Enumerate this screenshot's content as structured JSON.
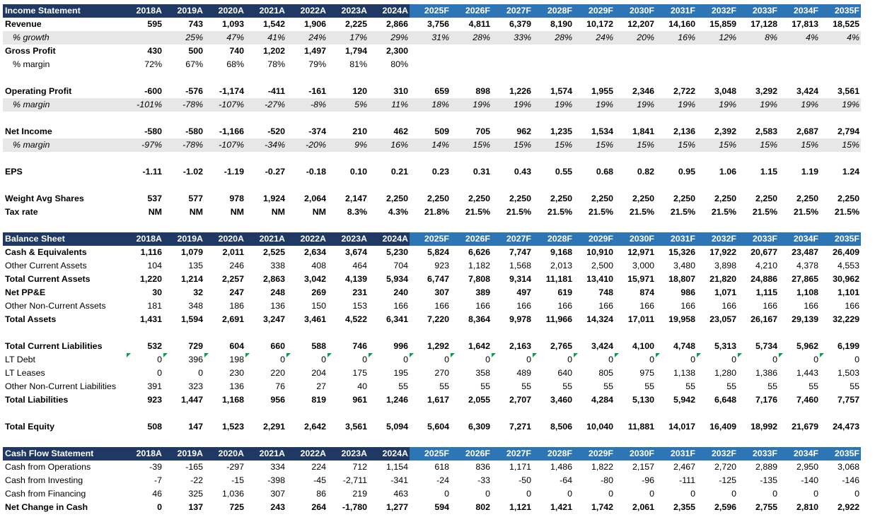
{
  "colors": {
    "header_bg": "#1f3864",
    "forecast_header_bg": "#2e75b6",
    "header_text": "#ffffff",
    "shade_bg": "#e7e7e7",
    "flag": "#00a14b"
  },
  "years": [
    {
      "label": "2018A",
      "forecast": false
    },
    {
      "label": "2019A",
      "forecast": false
    },
    {
      "label": "2020A",
      "forecast": false
    },
    {
      "label": "2021A",
      "forecast": false
    },
    {
      "label": "2022A",
      "forecast": false
    },
    {
      "label": "2023A",
      "forecast": false
    },
    {
      "label": "2024A",
      "forecast": false
    },
    {
      "label": "2025F",
      "forecast": true
    },
    {
      "label": "2026F",
      "forecast": true
    },
    {
      "label": "2027F",
      "forecast": true
    },
    {
      "label": "2028F",
      "forecast": true
    },
    {
      "label": "2029F",
      "forecast": true
    },
    {
      "label": "2030F",
      "forecast": true
    },
    {
      "label": "2031F",
      "forecast": true
    },
    {
      "label": "2032F",
      "forecast": true
    },
    {
      "label": "2033F",
      "forecast": true
    },
    {
      "label": "2034F",
      "forecast": true
    },
    {
      "label": "2035F",
      "forecast": true
    }
  ],
  "rows": [
    {
      "type": "header",
      "label": "Income Statement"
    },
    {
      "label": "Revenue",
      "style": "bold",
      "values": [
        "595",
        "743",
        "1,093",
        "1,542",
        "1,906",
        "2,225",
        "2,866",
        "3,756",
        "4,811",
        "6,379",
        "8,190",
        "10,172",
        "12,207",
        "14,160",
        "15,859",
        "17,128",
        "17,813",
        "18,525"
      ]
    },
    {
      "label": "% growth",
      "style": "ital shade",
      "indent": true,
      "values": [
        "",
        "25%",
        "47%",
        "41%",
        "24%",
        "17%",
        "29%",
        "31%",
        "28%",
        "33%",
        "28%",
        "24%",
        "20%",
        "16%",
        "12%",
        "8%",
        "4%",
        "4%"
      ]
    },
    {
      "label": "Gross Profit",
      "style": "bold",
      "values": [
        "430",
        "500",
        "740",
        "1,202",
        "1,497",
        "1,794",
        "2,300",
        "",
        "",
        "",
        "",
        "",
        "",
        "",
        "",
        "",
        "",
        ""
      ]
    },
    {
      "label": "% margin",
      "style": "",
      "indent": true,
      "values": [
        "72%",
        "67%",
        "68%",
        "78%",
        "79%",
        "81%",
        "80%",
        "",
        "",
        "",
        "",
        "",
        "",
        "",
        "",
        "",
        "",
        ""
      ]
    },
    {
      "type": "blank"
    },
    {
      "label": "Operating Profit",
      "style": "bold",
      "values": [
        "-600",
        "-576",
        "-1,174",
        "-411",
        "-161",
        "120",
        "310",
        "659",
        "898",
        "1,226",
        "1,574",
        "1,955",
        "2,346",
        "2,722",
        "3,048",
        "3,292",
        "3,424",
        "3,561"
      ]
    },
    {
      "label": "% margin",
      "style": "ital shade",
      "indent": true,
      "values": [
        "-101%",
        "-78%",
        "-107%",
        "-27%",
        "-8%",
        "5%",
        "11%",
        "18%",
        "19%",
        "19%",
        "19%",
        "19%",
        "19%",
        "19%",
        "19%",
        "19%",
        "19%",
        "19%"
      ]
    },
    {
      "type": "blank"
    },
    {
      "label": "Net Income",
      "style": "bold",
      "values": [
        "-580",
        "-580",
        "-1,166",
        "-520",
        "-374",
        "210",
        "462",
        "509",
        "705",
        "962",
        "1,235",
        "1,534",
        "1,841",
        "2,136",
        "2,392",
        "2,583",
        "2,687",
        "2,794"
      ]
    },
    {
      "label": "% margin",
      "style": "ital shade",
      "indent": true,
      "values": [
        "-97%",
        "-78%",
        "-107%",
        "-34%",
        "-20%",
        "9%",
        "16%",
        "14%",
        "15%",
        "15%",
        "15%",
        "15%",
        "15%",
        "15%",
        "15%",
        "15%",
        "15%",
        "15%"
      ]
    },
    {
      "type": "blank"
    },
    {
      "label": "EPS",
      "style": "bold",
      "values": [
        "-1.11",
        "-1.02",
        "-1.19",
        "-0.27",
        "-0.18",
        "0.10",
        "0.21",
        "0.23",
        "0.31",
        "0.43",
        "0.55",
        "0.68",
        "0.82",
        "0.95",
        "1.06",
        "1.15",
        "1.19",
        "1.24"
      ]
    },
    {
      "type": "blank"
    },
    {
      "label": "Weight Avg Shares",
      "style": "bold",
      "values": [
        "537",
        "577",
        "978",
        "1,924",
        "2,064",
        "2,147",
        "2,250",
        "2,250",
        "2,250",
        "2,250",
        "2,250",
        "2,250",
        "2,250",
        "2,250",
        "2,250",
        "2,250",
        "2,250",
        "2,250"
      ]
    },
    {
      "label": "Tax rate",
      "style": "bold",
      "values": [
        "NM",
        "NM",
        "NM",
        "NM",
        "NM",
        "8.3%",
        "4.3%",
        "21.8%",
        "21.5%",
        "21.5%",
        "21.5%",
        "21.5%",
        "21.5%",
        "21.5%",
        "21.5%",
        "21.5%",
        "21.5%",
        "21.5%"
      ]
    },
    {
      "type": "blank"
    },
    {
      "type": "header",
      "label": "Balance Sheet"
    },
    {
      "label": "Cash & Equivalents",
      "style": "bold",
      "values": [
        "1,116",
        "1,079",
        "2,011",
        "2,525",
        "2,634",
        "3,674",
        "5,230",
        "5,824",
        "6,626",
        "7,747",
        "9,168",
        "10,910",
        "12,971",
        "15,326",
        "17,922",
        "20,677",
        "23,487",
        "26,409"
      ]
    },
    {
      "label": "Other Current Assets",
      "style": "",
      "values": [
        "104",
        "135",
        "246",
        "338",
        "408",
        "464",
        "704",
        "923",
        "1,182",
        "1,568",
        "2,013",
        "2,500",
        "3,000",
        "3,480",
        "3,898",
        "4,210",
        "4,378",
        "4,553"
      ]
    },
    {
      "label": "Total Current Assets",
      "style": "bold",
      "values": [
        "1,220",
        "1,214",
        "2,257",
        "2,863",
        "3,042",
        "4,139",
        "5,934",
        "6,747",
        "7,808",
        "9,314",
        "11,181",
        "13,410",
        "15,971",
        "18,807",
        "21,820",
        "24,886",
        "27,865",
        "30,962"
      ]
    },
    {
      "label": "Net PP&E",
      "style": "bold",
      "values": [
        "30",
        "32",
        "247",
        "248",
        "269",
        "231",
        "240",
        "307",
        "389",
        "497",
        "619",
        "748",
        "874",
        "986",
        "1,071",
        "1,115",
        "1,108",
        "1,101"
      ]
    },
    {
      "label": "Other Non-Current Assets",
      "style": "",
      "values": [
        "181",
        "348",
        "186",
        "136",
        "150",
        "153",
        "166",
        "166",
        "166",
        "166",
        "166",
        "166",
        "166",
        "166",
        "166",
        "166",
        "166",
        "166"
      ]
    },
    {
      "label": "Total Assets",
      "style": "bold",
      "values": [
        "1,431",
        "1,594",
        "2,691",
        "3,247",
        "3,461",
        "4,522",
        "6,341",
        "7,220",
        "8,364",
        "9,978",
        "11,966",
        "14,324",
        "17,011",
        "19,958",
        "23,057",
        "26,167",
        "29,139",
        "32,229"
      ]
    },
    {
      "type": "blank"
    },
    {
      "label": "Total Current Liabilities",
      "style": "bold",
      "values": [
        "532",
        "729",
        "604",
        "660",
        "588",
        "746",
        "996",
        "1,292",
        "1,642",
        "2,163",
        "2,765",
        "3,424",
        "4,100",
        "4,748",
        "5,313",
        "5,734",
        "5,962",
        "6,199"
      ]
    },
    {
      "label": "LT Debt",
      "style": "",
      "flagged": true,
      "values": [
        "0",
        "396",
        "198",
        "0",
        "0",
        "0",
        "0",
        "0",
        "0",
        "0",
        "0",
        "0",
        "0",
        "0",
        "0",
        "0",
        "0",
        "0"
      ]
    },
    {
      "label": "LT Leases",
      "style": "",
      "values": [
        "0",
        "0",
        "230",
        "220",
        "204",
        "175",
        "195",
        "270",
        "358",
        "489",
        "640",
        "805",
        "975",
        "1,138",
        "1,280",
        "1,386",
        "1,443",
        "1,503"
      ]
    },
    {
      "label": "Other Non-Current Liabilities",
      "style": "",
      "values": [
        "391",
        "323",
        "136",
        "76",
        "27",
        "40",
        "55",
        "55",
        "55",
        "55",
        "55",
        "55",
        "55",
        "55",
        "55",
        "55",
        "55",
        "55"
      ]
    },
    {
      "label": "Total Liabilities",
      "style": "bold",
      "values": [
        "923",
        "1,447",
        "1,168",
        "956",
        "819",
        "961",
        "1,246",
        "1,617",
        "2,055",
        "2,707",
        "3,460",
        "4,284",
        "5,130",
        "5,942",
        "6,648",
        "7,176",
        "7,460",
        "7,757"
      ]
    },
    {
      "type": "blank"
    },
    {
      "label": "Total Equity",
      "style": "bold",
      "values": [
        "508",
        "147",
        "1,523",
        "2,291",
        "2,642",
        "3,561",
        "5,094",
        "5,604",
        "6,309",
        "7,271",
        "8,506",
        "10,040",
        "11,881",
        "14,017",
        "16,409",
        "18,992",
        "21,679",
        "24,473"
      ]
    },
    {
      "type": "blank"
    },
    {
      "type": "header",
      "label": "Cash Flow Statement"
    },
    {
      "label": "Cash from Operations",
      "style": "",
      "values": [
        "-39",
        "-165",
        "-297",
        "334",
        "224",
        "712",
        "1,154",
        "618",
        "836",
        "1,171",
        "1,486",
        "1,822",
        "2,157",
        "2,467",
        "2,720",
        "2,889",
        "2,950",
        "3,068"
      ]
    },
    {
      "label": "Cash from Investing",
      "style": "",
      "values": [
        "-7",
        "-22",
        "-15",
        "-398",
        "-45",
        "-2,711",
        "-341",
        "-24",
        "-33",
        "-50",
        "-64",
        "-80",
        "-96",
        "-111",
        "-125",
        "-135",
        "-140",
        "-146"
      ]
    },
    {
      "label": "Cash from Financing",
      "style": "",
      "values": [
        "46",
        "325",
        "1,036",
        "307",
        "86",
        "219",
        "463",
        "0",
        "0",
        "0",
        "0",
        "0",
        "0",
        "0",
        "0",
        "0",
        "0",
        "0"
      ]
    },
    {
      "label": "Net Change in Cash",
      "style": "bold",
      "values": [
        "0",
        "137",
        "725",
        "243",
        "264",
        "-1,780",
        "1,277",
        "594",
        "802",
        "1,121",
        "1,421",
        "1,742",
        "2,061",
        "2,355",
        "2,596",
        "2,755",
        "2,810",
        "2,922"
      ]
    }
  ]
}
